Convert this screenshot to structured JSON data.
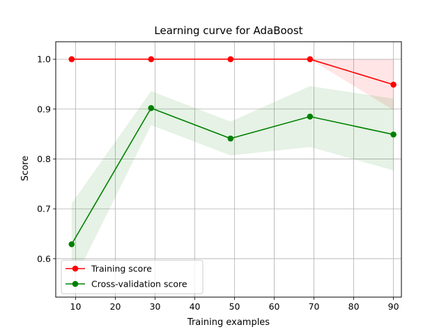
{
  "chart_data": {
    "type": "line",
    "title": "Learning curve for AdaBoost",
    "xlabel": "Training examples",
    "ylabel": "Score",
    "xlim": [
      5,
      92
    ],
    "ylim": [
      0.523,
      1.035
    ],
    "xticks": [
      10,
      20,
      30,
      40,
      50,
      60,
      70,
      80,
      90
    ],
    "yticks": [
      0.6,
      0.7,
      0.8,
      0.9,
      1.0
    ],
    "grid": true,
    "legend_position": "lower-left",
    "x": [
      9,
      29,
      49,
      69,
      90
    ],
    "series": [
      {
        "name": "Training score",
        "color": "#ff0000",
        "band_color": "#ff0000",
        "values": [
          1.0,
          1.0,
          1.0,
          1.0,
          0.949
        ],
        "lower": [
          1.0,
          1.0,
          1.0,
          1.0,
          0.898
        ],
        "upper": [
          1.0,
          1.0,
          1.0,
          1.0,
          1.0
        ]
      },
      {
        "name": "Cross-validation score",
        "color": "#008000",
        "band_color": "#008000",
        "values": [
          0.629,
          0.902,
          0.841,
          0.885,
          0.849
        ],
        "lower": [
          0.547,
          0.868,
          0.807,
          0.824,
          0.777
        ],
        "upper": [
          0.711,
          0.936,
          0.875,
          0.946,
          0.921
        ]
      }
    ]
  }
}
